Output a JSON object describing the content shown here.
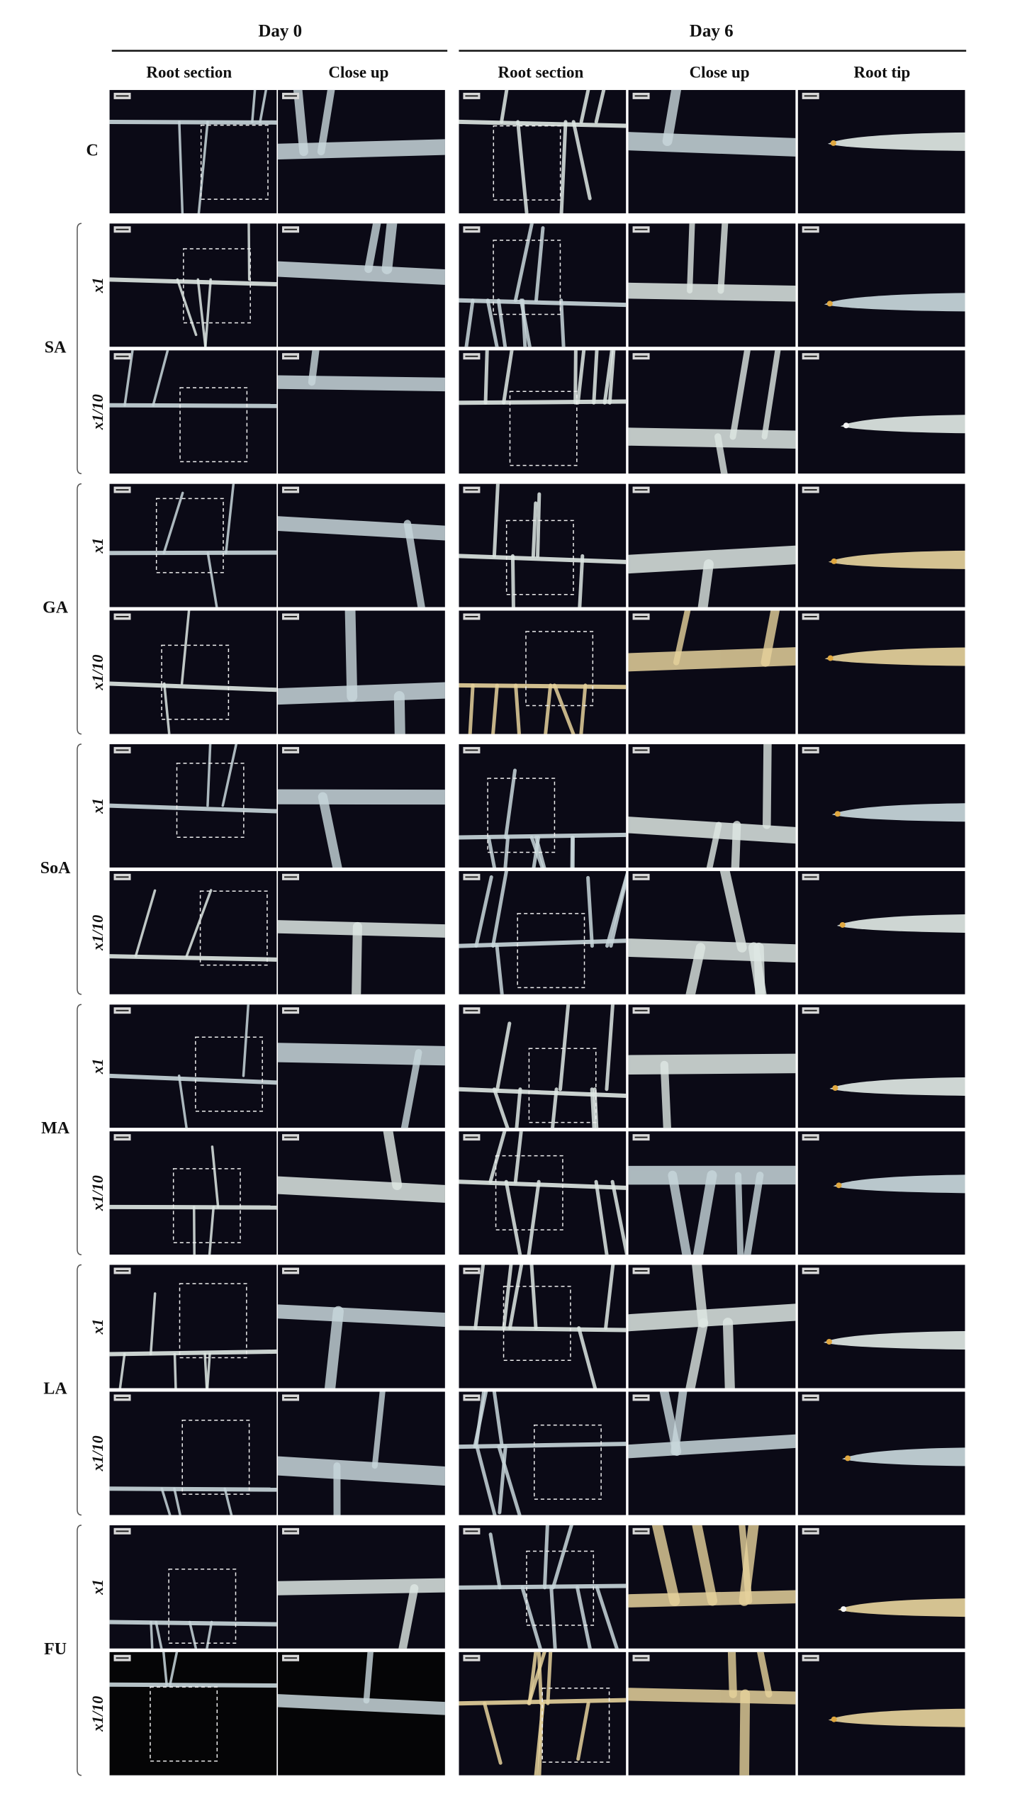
{
  "header": {
    "day0": "Day 0",
    "day6": "Day 6",
    "columns": [
      "Root section",
      "Close up",
      "Root section",
      "Close up",
      "Root tip"
    ]
  },
  "groups": [
    {
      "label": "C"
    },
    {
      "label": "SA",
      "rows": [
        "x1",
        "x1/10"
      ]
    },
    {
      "label": "GA",
      "rows": [
        "x1",
        "x1/10"
      ]
    },
    {
      "label": "SoA",
      "rows": [
        "x1",
        "x1/10"
      ]
    },
    {
      "label": "MA",
      "rows": [
        "x1",
        "x1/10"
      ]
    },
    {
      "label": "LA",
      "rows": [
        "x1",
        "x1/10"
      ]
    },
    {
      "label": "FU",
      "rows": [
        "x1",
        "x1/10"
      ]
    }
  ]
}
